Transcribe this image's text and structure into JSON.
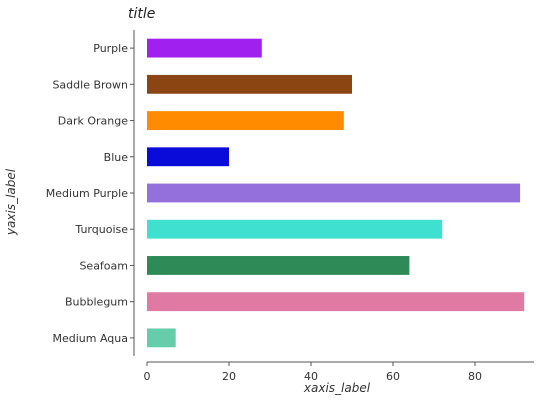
{
  "chart_data": {
    "type": "bar",
    "orientation": "horizontal",
    "title": "title",
    "xlabel": "xaxis_label",
    "ylabel": "yaxis_label",
    "xlim": [
      0,
      95
    ],
    "xticks": [
      0,
      20,
      40,
      60,
      80
    ],
    "grid": false,
    "categories": [
      "Medium Aqua",
      "Bubblegum",
      "Seafoam",
      "Turquoise",
      "Medium Purple",
      "Blue",
      "Dark Orange",
      "Saddle Brown",
      "Purple"
    ],
    "values": [
      7,
      92,
      64,
      72,
      91,
      20,
      48,
      50,
      28
    ],
    "colors": [
      "#66cdaa",
      "#e07aa2",
      "#2e8b57",
      "#40e0d0",
      "#9370db",
      "#0a0ad9",
      "#ff8c00",
      "#8b4513",
      "#a020f0"
    ]
  }
}
